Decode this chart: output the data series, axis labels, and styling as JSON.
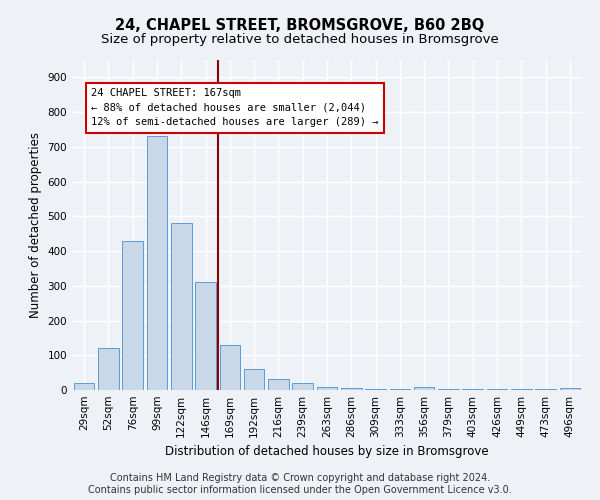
{
  "title_line1": "24, CHAPEL STREET, BROMSGROVE, B60 2BQ",
  "title_line2": "Size of property relative to detached houses in Bromsgrove",
  "xlabel": "Distribution of detached houses by size in Bromsgrove",
  "ylabel": "Number of detached properties",
  "bin_labels": [
    "29sqm",
    "52sqm",
    "76sqm",
    "99sqm",
    "122sqm",
    "146sqm",
    "169sqm",
    "192sqm",
    "216sqm",
    "239sqm",
    "263sqm",
    "286sqm",
    "309sqm",
    "333sqm",
    "356sqm",
    "379sqm",
    "403sqm",
    "426sqm",
    "449sqm",
    "473sqm",
    "496sqm"
  ],
  "bar_values": [
    20,
    120,
    430,
    730,
    480,
    310,
    130,
    60,
    33,
    20,
    10,
    5,
    2,
    2,
    10,
    2,
    2,
    2,
    2,
    2,
    5
  ],
  "bar_color": "#c8d8e8",
  "bar_edge_color": "#5b9bd5",
  "vline_x": 6.0,
  "vline_color": "#8b0000",
  "annotation_text": "24 CHAPEL STREET: 167sqm\n← 88% of detached houses are smaller (2,044)\n12% of semi-detached houses are larger (289) →",
  "annotation_box_color": "#ffffff",
  "annotation_box_edge_color": "#cc0000",
  "ylim": [
    0,
    950
  ],
  "yticks": [
    0,
    100,
    200,
    300,
    400,
    500,
    600,
    700,
    800,
    900
  ],
  "footer_line1": "Contains HM Land Registry data © Crown copyright and database right 2024.",
  "footer_line2": "Contains public sector information licensed under the Open Government Licence v3.0.",
  "bg_color": "#eef2f7",
  "plot_bg_color": "#eef2f7",
  "grid_color": "#ffffff",
  "title_fontsize": 10.5,
  "subtitle_fontsize": 9.5,
  "axis_label_fontsize": 8.5,
  "tick_fontsize": 7.5,
  "footer_fontsize": 7.0,
  "annotation_fontsize": 7.5
}
